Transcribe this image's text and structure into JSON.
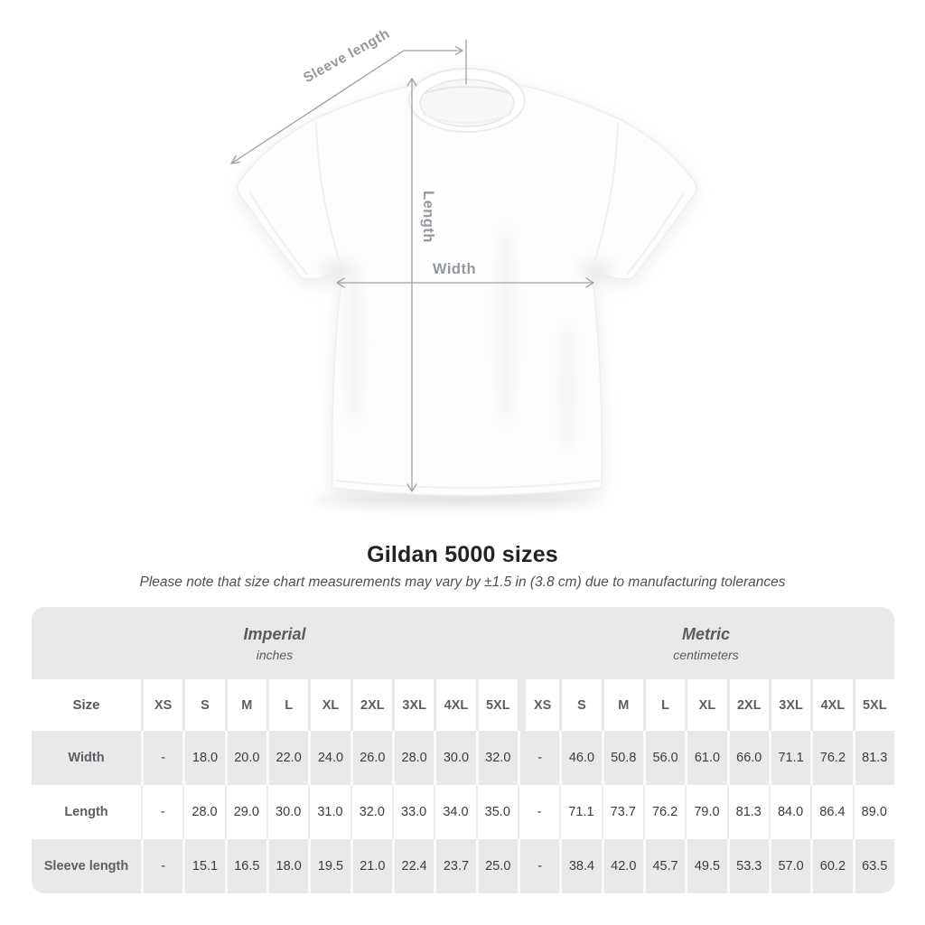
{
  "page": {
    "background": "#ffffff"
  },
  "diagram": {
    "labels": {
      "sleeve_length": "Sleeve length",
      "length": "Length",
      "width": "Width"
    },
    "annotation_color": "#9ba0a5"
  },
  "heading": {
    "title": "Gildan 5000 sizes",
    "subtitle": "Please note that size chart measurements may vary by ±1.5 in (3.8 cm) due to manufacturing tolerances"
  },
  "chart_data": {
    "type": "table",
    "title": "Gildan 5000 sizes",
    "unit_groups": [
      {
        "label": "Imperial",
        "sublabel": "inches"
      },
      {
        "label": "Metric",
        "sublabel": "centimeters"
      }
    ],
    "corner_header": "Size",
    "sizes": [
      "XS",
      "S",
      "M",
      "L",
      "XL",
      "2XL",
      "3XL",
      "4XL",
      "5XL"
    ],
    "rows": [
      {
        "label": "Width",
        "imperial": [
          "-",
          "18.0",
          "20.0",
          "22.0",
          "24.0",
          "26.0",
          "28.0",
          "30.0",
          "32.0"
        ],
        "metric": [
          "-",
          "46.0",
          "50.8",
          "56.0",
          "61.0",
          "66.0",
          "71.1",
          "76.2",
          "81.3"
        ]
      },
      {
        "label": "Length",
        "imperial": [
          "-",
          "28.0",
          "29.0",
          "30.0",
          "31.0",
          "32.0",
          "33.0",
          "34.0",
          "35.0"
        ],
        "metric": [
          "-",
          "71.1",
          "73.7",
          "76.2",
          "79.0",
          "81.3",
          "84.0",
          "86.4",
          "89.0"
        ]
      },
      {
        "label": "Sleeve length",
        "imperial": [
          "-",
          "15.1",
          "16.5",
          "18.0",
          "19.5",
          "21.0",
          "22.4",
          "23.7",
          "25.0"
        ],
        "metric": [
          "-",
          "38.4",
          "42.0",
          "45.7",
          "49.5",
          "53.3",
          "57.0",
          "60.2",
          "63.5"
        ]
      }
    ]
  },
  "colors": {
    "band_bg": "#e9e9e9",
    "row_alt_bg": "#e9e9e9",
    "header_text": "#5a5f64",
    "value_text": "#393c3f",
    "title_text": "#212326",
    "subtitle_text": "#4c5055"
  }
}
